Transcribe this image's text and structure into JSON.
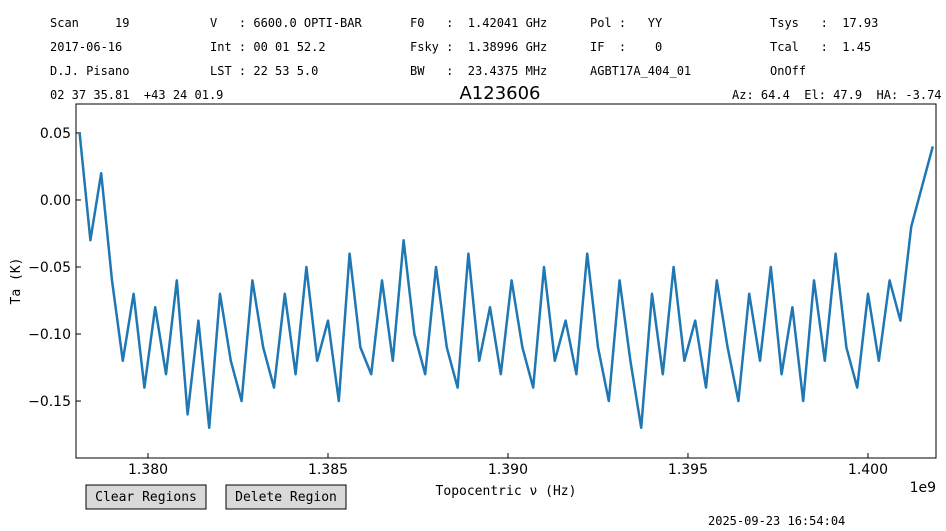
{
  "header": {
    "columns": [
      [
        "Scan     19",
        "2017-06-16",
        "D.J. Pisano"
      ],
      [
        "V   : 6600.0 OPTI-BAR",
        "Int : 00 01 52.2",
        "LST : 22 53 5.0"
      ],
      [
        "F0   :  1.42041 GHz",
        "Fsky :  1.38996 GHz",
        "BW   :  23.4375 MHz"
      ],
      [
        "Pol :   YY",
        "IF  :    0",
        "AGBT17A_404_01"
      ],
      [
        "Tsys   :  17.93",
        "Tcal   :  1.45",
        "OnOff"
      ]
    ],
    "coordinates": "02 37 35.81  +43 24 01.9",
    "pointing": "Az: 64.4  El: 47.9  HA: -3.74"
  },
  "chart_data": {
    "type": "line",
    "title": "A123606",
    "x_label": "Topocentric ν (Hz)",
    "y_label": "Ta (K)",
    "x_offset_label": "1e9",
    "xlim": [
      1378000000,
      1401890000
    ],
    "ylim": [
      -0.1925,
      0.0716
    ],
    "xticks": [
      {
        "value": 1380000000,
        "label": "1.380"
      },
      {
        "value": 1385000000,
        "label": "1.385"
      },
      {
        "value": 1390000000,
        "label": "1.390"
      },
      {
        "value": 1395000000,
        "label": "1.395"
      },
      {
        "value": 1400000000,
        "label": "1.400"
      }
    ],
    "yticks": [
      {
        "value": 0.05,
        "label": "0.05"
      },
      {
        "value": 0,
        "label": "0.00"
      },
      {
        "value": -0.05,
        "label": "−0.05"
      },
      {
        "value": -0.1,
        "label": "−0.10"
      },
      {
        "value": -0.15,
        "label": "−0.15"
      }
    ],
    "series": [
      {
        "color": "#1f77b4",
        "x": [
          1378100000,
          1378400000,
          1378700000,
          1379000000,
          1379300000,
          1379600000,
          1379900000,
          1380200000,
          1380500000,
          1380800000,
          1381100000,
          1381400000,
          1381700000,
          1382000000,
          1382300000,
          1382600000,
          1382900000,
          1383200000,
          1383500000,
          1383800000,
          1384100000,
          1384400000,
          1384700000,
          1385000000,
          1385300000,
          1385600000,
          1385900000,
          1386200000,
          1386500000,
          1386800000,
          1387100000,
          1387400000,
          1387700000,
          1388000000,
          1388300000,
          1388600000,
          1388900000,
          1389200000,
          1389500000,
          1389800000,
          1390100000,
          1390400000,
          1390700000,
          1391000000,
          1391300000,
          1391600000,
          1391900000,
          1392200000,
          1392500000,
          1392800000,
          1393100000,
          1393400000,
          1393700000,
          1394000000,
          1394300000,
          1394600000,
          1394900000,
          1395200000,
          1395500000,
          1395800000,
          1396100000,
          1396400000,
          1396700000,
          1397000000,
          1397300000,
          1397600000,
          1397900000,
          1398200000,
          1398500000,
          1398800000,
          1399100000,
          1399400000,
          1399700000,
          1400000000,
          1400300000,
          1400600000,
          1400900000,
          1401200000,
          1401500000,
          1401800000
        ],
        "values": [
          0.05,
          -0.03,
          0.02,
          -0.06,
          -0.12,
          -0.07,
          -0.14,
          -0.08,
          -0.13,
          -0.06,
          -0.16,
          -0.09,
          -0.17,
          -0.07,
          -0.12,
          -0.15,
          -0.06,
          -0.11,
          -0.14,
          -0.07,
          -0.13,
          -0.05,
          -0.12,
          -0.09,
          -0.15,
          -0.04,
          -0.11,
          -0.13,
          -0.06,
          -0.12,
          -0.03,
          -0.1,
          -0.13,
          -0.05,
          -0.11,
          -0.14,
          -0.04,
          -0.12,
          -0.08,
          -0.13,
          -0.06,
          -0.11,
          -0.14,
          -0.05,
          -0.12,
          -0.09,
          -0.13,
          -0.04,
          -0.11,
          -0.15,
          -0.06,
          -0.12,
          -0.17,
          -0.07,
          -0.13,
          -0.05,
          -0.12,
          -0.09,
          -0.14,
          -0.06,
          -0.11,
          -0.15,
          -0.07,
          -0.12,
          -0.05,
          -0.13,
          -0.08,
          -0.15,
          -0.06,
          -0.12,
          -0.04,
          -0.11,
          -0.14,
          -0.07,
          -0.12,
          -0.06,
          -0.09,
          -0.02,
          0.01,
          0.04
        ]
      }
    ]
  },
  "buttons": [
    "Clear Regions",
    "Delete Region"
  ],
  "timestamp": "2025-09-23 16:54:04"
}
